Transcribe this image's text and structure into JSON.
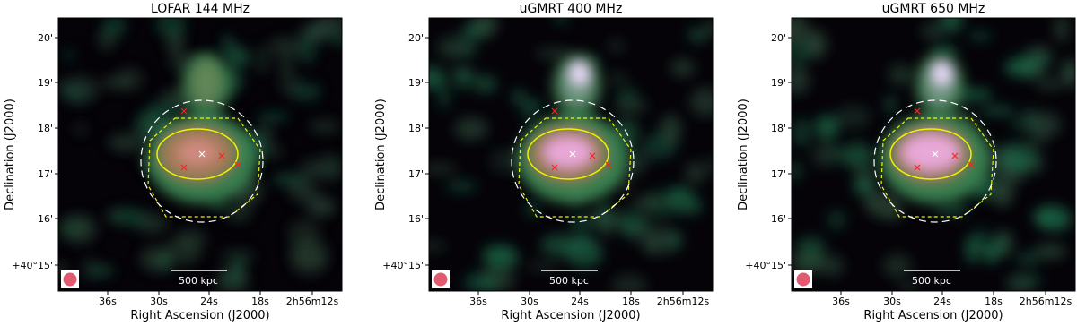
{
  "panels": [
    {
      "title": "LOFAR 144 MHz",
      "xlabel": "Right Ascension (J2000)",
      "ylabel": "Declination (J2000)",
      "xticks": [
        "36s",
        "30s",
        "24s",
        "18s",
        "2h56m12s"
      ],
      "yticks": [
        "20'",
        "19'",
        "18'",
        "17'",
        "16'",
        "+40°15'"
      ],
      "scalebar": "500 kpc"
    },
    {
      "title": "uGMRT 400 MHz",
      "xlabel": "Right Ascension (J2000)",
      "ylabel": "Declination (J2000)",
      "xticks": [
        "36s",
        "30s",
        "24s",
        "18s",
        "2h56m12s"
      ],
      "yticks": [
        "20'",
        "19'",
        "18'",
        "17'",
        "16'",
        "+40°15'"
      ],
      "scalebar": "500 kpc"
    },
    {
      "title": "uGMRT 650 MHz",
      "xlabel": "Right Ascension (J2000)",
      "ylabel": "Declination (J2000)",
      "xticks": [
        "36s",
        "30s",
        "24s",
        "18s",
        "2h56m12s"
      ],
      "yticks": [
        "20'",
        "19'",
        "18'",
        "17'",
        "16'",
        "+40°15'"
      ],
      "scalebar": "500 kpc"
    }
  ]
}
